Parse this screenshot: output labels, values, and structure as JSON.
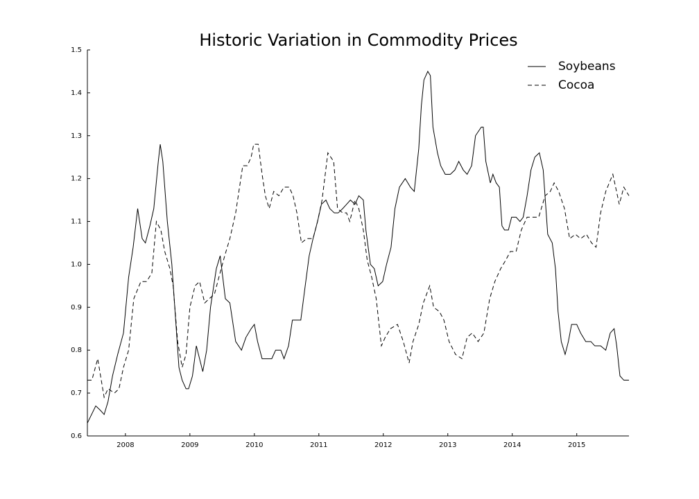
{
  "chart_data": {
    "type": "line",
    "title": "Historic Variation in Commodity Prices",
    "xlim": [
      2007.41,
      2015.81
    ],
    "xticks": [
      2008,
      2009,
      2010,
      2011,
      2012,
      2013,
      2014,
      2015
    ],
    "ylim": [
      0.6,
      1.5
    ],
    "yticks": [
      0.6,
      0.7,
      0.8,
      0.9,
      {
        "value": 1,
        "label": "1.0"
      },
      1.1,
      1.2,
      1.3,
      1.4,
      1.5
    ],
    "grid": false,
    "legend": "upper right",
    "series": [
      {
        "name": "Soybeans",
        "color": "#000000",
        "linestyle": "solid",
        "x": [
          2007.41,
          2007.54,
          2007.61,
          2007.67,
          2007.73,
          2007.8,
          2007.88,
          2007.97,
          2008.05,
          2008.12,
          2008.19,
          2008.26,
          2008.31,
          2008.38,
          2008.44,
          2008.51,
          2008.54,
          2008.58,
          2008.65,
          2008.72,
          2008.77,
          2008.83,
          2008.88,
          2008.94,
          2008.98,
          2009.04,
          2009.1,
          2009.15,
          2009.2,
          2009.26,
          2009.32,
          2009.41,
          2009.47,
          2009.55,
          2009.62,
          2009.71,
          2009.8,
          2009.87,
          2009.95,
          2010.0,
          2010.05,
          2010.12,
          2010.19,
          2010.27,
          2010.33,
          2010.41,
          2010.46,
          2010.53,
          2010.59,
          2010.66,
          2010.72,
          2010.78,
          2010.85,
          2010.91,
          2010.98,
          2011.04,
          2011.11,
          2011.17,
          2011.24,
          2011.3,
          2011.37,
          2011.43,
          2011.49,
          2011.56,
          2011.62,
          2011.69,
          2011.73,
          2011.8,
          2011.86,
          2011.92,
          2011.99,
          2012.05,
          2012.12,
          2012.18,
          2012.25,
          2012.34,
          2012.42,
          2012.48,
          2012.55,
          2012.59,
          2012.63,
          2012.69,
          2012.73,
          2012.77,
          2012.84,
          2012.89,
          2012.96,
          2013.04,
          2013.11,
          2013.17,
          2013.24,
          2013.3,
          2013.37,
          2013.43,
          2013.52,
          2013.55,
          2013.59,
          2013.66,
          2013.7,
          2013.75,
          2013.8,
          2013.84,
          2013.88,
          2013.94,
          2013.99,
          2014.06,
          2014.12,
          2014.17,
          2014.23,
          2014.29,
          2014.35,
          2014.42,
          2014.48,
          2014.55,
          2014.62,
          2014.67,
          2014.71,
          2014.76,
          2014.82,
          2014.87,
          2014.92,
          2015.0,
          2015.06,
          2015.14,
          2015.22,
          2015.28,
          2015.37,
          2015.45,
          2015.52,
          2015.58,
          2015.62,
          2015.67,
          2015.73,
          2015.81
        ],
        "values": [
          0.63,
          0.67,
          0.66,
          0.65,
          0.68,
          0.74,
          0.79,
          0.84,
          0.97,
          1.04,
          1.13,
          1.06,
          1.05,
          1.09,
          1.13,
          1.24,
          1.28,
          1.24,
          1.1,
          1.0,
          0.89,
          0.76,
          0.73,
          0.71,
          0.71,
          0.74,
          0.81,
          0.78,
          0.75,
          0.8,
          0.9,
          0.99,
          1.02,
          0.92,
          0.91,
          0.82,
          0.8,
          0.83,
          0.85,
          0.86,
          0.82,
          0.78,
          0.78,
          0.78,
          0.8,
          0.8,
          0.78,
          0.81,
          0.87,
          0.87,
          0.87,
          0.94,
          1.02,
          1.06,
          1.1,
          1.14,
          1.15,
          1.13,
          1.12,
          1.12,
          1.13,
          1.14,
          1.15,
          1.14,
          1.16,
          1.15,
          1.08,
          1.0,
          0.99,
          0.95,
          0.96,
          1.0,
          1.04,
          1.13,
          1.18,
          1.2,
          1.18,
          1.17,
          1.27,
          1.37,
          1.43,
          1.45,
          1.44,
          1.32,
          1.26,
          1.23,
          1.21,
          1.21,
          1.22,
          1.24,
          1.22,
          1.21,
          1.23,
          1.3,
          1.32,
          1.32,
          1.24,
          1.19,
          1.21,
          1.19,
          1.18,
          1.09,
          1.08,
          1.08,
          1.11,
          1.11,
          1.1,
          1.11,
          1.16,
          1.22,
          1.25,
          1.26,
          1.22,
          1.07,
          1.05,
          0.99,
          0.89,
          0.82,
          0.79,
          0.82,
          0.86,
          0.86,
          0.84,
          0.82,
          0.82,
          0.81,
          0.81,
          0.8,
          0.84,
          0.85,
          0.81,
          0.74,
          0.73,
          0.73
        ]
      },
      {
        "name": "Cocoa",
        "color": "#000000",
        "linestyle": "dashed",
        "x": [
          2007.41,
          2007.48,
          2007.57,
          2007.67,
          2007.73,
          2007.83,
          2007.9,
          2007.97,
          2008.05,
          2008.13,
          2008.24,
          2008.33,
          2008.41,
          2008.48,
          2008.55,
          2008.61,
          2008.69,
          2008.74,
          2008.81,
          2008.88,
          2008.94,
          2009.0,
          2009.08,
          2009.15,
          2009.23,
          2009.3,
          2009.38,
          2009.45,
          2009.54,
          2009.62,
          2009.71,
          2009.77,
          2009.82,
          2009.89,
          2009.95,
          2009.99,
          2010.06,
          2010.12,
          2010.17,
          2010.23,
          2010.3,
          2010.38,
          2010.46,
          2010.54,
          2010.6,
          2010.66,
          2010.73,
          2010.81,
          2010.91,
          2010.98,
          2011.05,
          2011.14,
          2011.23,
          2011.29,
          2011.37,
          2011.43,
          2011.48,
          2011.56,
          2011.62,
          2011.69,
          2011.75,
          2011.82,
          2011.89,
          2011.97,
          2012.03,
          2012.11,
          2012.22,
          2012.31,
          2012.4,
          2012.46,
          2012.55,
          2012.62,
          2012.72,
          2012.78,
          2012.87,
          2012.94,
          2013.02,
          2013.12,
          2013.22,
          2013.3,
          2013.38,
          2013.47,
          2013.56,
          2013.65,
          2013.73,
          2013.82,
          2013.9,
          2013.97,
          2014.06,
          2014.14,
          2014.23,
          2014.31,
          2014.41,
          2014.51,
          2014.59,
          2014.65,
          2014.72,
          2014.81,
          2014.89,
          2014.98,
          2015.06,
          2015.15,
          2015.23,
          2015.3,
          2015.37,
          2015.45,
          2015.56,
          2015.66,
          2015.73,
          2015.81
        ],
        "values": [
          0.73,
          0.73,
          0.78,
          0.69,
          0.71,
          0.7,
          0.71,
          0.76,
          0.8,
          0.92,
          0.96,
          0.96,
          0.98,
          1.1,
          1.08,
          1.03,
          0.99,
          0.95,
          0.82,
          0.76,
          0.79,
          0.9,
          0.95,
          0.96,
          0.91,
          0.92,
          0.93,
          0.97,
          1.02,
          1.06,
          1.12,
          1.18,
          1.23,
          1.23,
          1.25,
          1.28,
          1.28,
          1.21,
          1.16,
          1.13,
          1.17,
          1.16,
          1.18,
          1.18,
          1.16,
          1.12,
          1.05,
          1.06,
          1.06,
          1.1,
          1.15,
          1.26,
          1.24,
          1.13,
          1.12,
          1.12,
          1.1,
          1.15,
          1.13,
          1.08,
          1.01,
          0.97,
          0.92,
          0.81,
          0.83,
          0.85,
          0.86,
          0.82,
          0.77,
          0.82,
          0.86,
          0.91,
          0.95,
          0.9,
          0.89,
          0.87,
          0.82,
          0.79,
          0.78,
          0.83,
          0.84,
          0.82,
          0.84,
          0.92,
          0.96,
          0.99,
          1.01,
          1.03,
          1.03,
          1.08,
          1.11,
          1.11,
          1.11,
          1.16,
          1.17,
          1.19,
          1.17,
          1.13,
          1.06,
          1.07,
          1.06,
          1.07,
          1.05,
          1.04,
          1.12,
          1.17,
          1.21,
          1.14,
          1.18,
          1.16
        ]
      }
    ]
  }
}
